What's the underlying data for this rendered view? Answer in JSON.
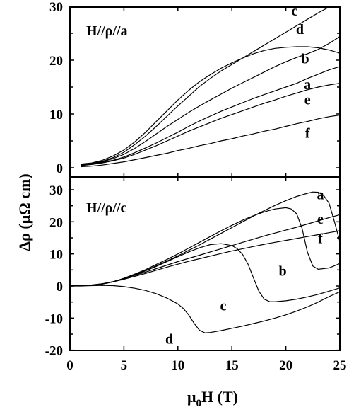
{
  "chart_data": [
    {
      "type": "line",
      "panel_label": "H//ρ//a",
      "xlim": [
        0,
        25
      ],
      "ylim": [
        -2,
        30
      ],
      "yticks": [
        "0",
        "10",
        "20",
        "30"
      ],
      "series": [
        {
          "name": "a",
          "x": [
            1,
            2,
            3,
            4,
            5,
            6,
            7,
            8,
            9,
            10,
            11,
            12,
            13,
            14,
            15,
            16,
            17,
            18,
            19,
            20,
            21,
            22,
            23,
            24,
            25
          ],
          "values": [
            0.5,
            0.7,
            1.0,
            1.4,
            2.0,
            2.8,
            3.7,
            4.6,
            5.6,
            6.6,
            7.7,
            8.7,
            9.6,
            10.5,
            11.3,
            12.1,
            12.9,
            13.6,
            14.3,
            15.0,
            15.7,
            16.6,
            17.4,
            18.2,
            18.8
          ]
        },
        {
          "name": "b",
          "x": [
            1,
            2,
            3,
            4,
            5,
            6,
            7,
            8,
            9,
            10,
            11,
            12,
            13,
            14,
            15,
            16,
            17,
            18,
            19,
            20,
            21,
            22,
            23,
            24,
            25
          ],
          "values": [
            0.5,
            0.7,
            1.1,
            1.7,
            2.5,
            3.6,
            4.9,
            6.3,
            7.7,
            9.0,
            10.3,
            11.5,
            12.6,
            13.7,
            14.8,
            15.8,
            16.8,
            17.8,
            18.8,
            19.7,
            20.5,
            21.2,
            22.0,
            23.1,
            24.4
          ]
        },
        {
          "name": "c",
          "x": [
            1,
            2,
            3,
            4,
            5,
            6,
            7,
            8,
            9,
            10,
            11,
            12,
            13,
            14,
            15,
            16,
            17,
            18,
            19,
            20,
            21,
            22,
            23,
            24,
            25
          ],
          "values": [
            0.6,
            0.8,
            1.2,
            1.9,
            2.9,
            4.3,
            5.9,
            7.7,
            9.6,
            11.5,
            13.3,
            15.1,
            16.6,
            18.0,
            19.2,
            20.4,
            21.6,
            22.8,
            24.0,
            25.2,
            26.4,
            27.6,
            28.8,
            29.9,
            30.7
          ]
        },
        {
          "name": "d",
          "x": [
            1,
            2,
            3,
            4,
            5,
            6,
            7,
            8,
            9,
            10,
            11,
            12,
            13,
            14,
            15,
            16,
            17,
            18,
            19,
            20,
            21,
            22,
            23,
            24,
            25
          ],
          "values": [
            0.7,
            0.9,
            1.4,
            2.2,
            3.3,
            4.8,
            6.6,
            8.6,
            10.6,
            12.6,
            14.4,
            16.0,
            17.3,
            18.5,
            19.5,
            20.4,
            21.2,
            21.8,
            22.2,
            22.4,
            22.5,
            22.5,
            22.3,
            21.9,
            21.3
          ]
        },
        {
          "name": "e",
          "x": [
            1,
            2,
            3,
            4,
            5,
            6,
            7,
            8,
            9,
            10,
            11,
            12,
            13,
            14,
            15,
            16,
            17,
            18,
            19,
            20,
            21,
            22,
            23,
            24,
            25
          ],
          "values": [
            0.4,
            0.6,
            0.9,
            1.3,
            1.8,
            2.5,
            3.3,
            4.1,
            5.0,
            5.9,
            6.8,
            7.6,
            8.4,
            9.2,
            9.9,
            10.6,
            11.3,
            12.0,
            12.6,
            13.3,
            13.9,
            14.5,
            15.0,
            15.4,
            15.7
          ]
        },
        {
          "name": "f",
          "x": [
            1,
            2,
            3,
            4,
            5,
            6,
            7,
            8,
            9,
            10,
            11,
            12,
            13,
            14,
            15,
            16,
            17,
            18,
            19,
            20,
            21,
            22,
            23,
            24,
            25
          ],
          "values": [
            0.2,
            0.3,
            0.5,
            0.8,
            1.1,
            1.5,
            1.9,
            2.3,
            2.7,
            3.2,
            3.6,
            4.1,
            4.5,
            5.0,
            5.4,
            5.9,
            6.3,
            6.8,
            7.2,
            7.7,
            8.2,
            8.6,
            9.1,
            9.5,
            9.8
          ]
        }
      ],
      "curve_labels": [
        {
          "text": "c",
          "x": 20.8,
          "y": 28.3
        },
        {
          "text": "d",
          "x": 21.3,
          "y": 24.9
        },
        {
          "text": "b",
          "x": 21.8,
          "y": 19.4
        },
        {
          "text": "a",
          "x": 22.0,
          "y": 14.6
        },
        {
          "text": "e",
          "x": 22.0,
          "y": 11.8
        },
        {
          "text": "f",
          "x": 22.0,
          "y": 5.6
        }
      ]
    },
    {
      "type": "line",
      "panel_label": "H//ρ//c",
      "xlim": [
        0,
        25
      ],
      "ylim": [
        -20,
        35
      ],
      "xticks": [
        "0",
        "5",
        "10",
        "15",
        "20",
        "25"
      ],
      "yticks": [
        "-20",
        "-10",
        "0",
        "10",
        "20",
        "30"
      ],
      "series": [
        {
          "name": "a",
          "x": [
            0,
            1,
            2,
            3,
            4,
            5,
            6,
            7,
            8,
            9,
            10,
            11,
            12,
            13,
            14,
            15,
            16,
            17,
            18,
            19,
            20,
            21,
            22,
            22.5,
            23,
            23.5,
            24,
            24.5,
            25
          ],
          "values": [
            0.0,
            0.1,
            0.2,
            0.6,
            1.3,
            2.3,
            3.5,
            4.8,
            6.3,
            7.8,
            9.4,
            11.1,
            12.8,
            14.6,
            16.4,
            18.2,
            20.0,
            21.8,
            23.5,
            25.1,
            26.6,
            27.9,
            28.9,
            29.3,
            29.2,
            28.2,
            25.8,
            20.0,
            13.8
          ]
        },
        {
          "name": "b",
          "x": [
            0,
            1,
            2,
            3,
            4,
            5,
            6,
            7,
            8,
            9,
            10,
            11,
            12,
            13,
            14,
            15,
            16,
            17,
            18,
            19,
            20,
            20.5,
            21,
            21.5,
            22,
            22.5,
            23,
            24,
            25
          ],
          "values": [
            0.0,
            0.1,
            0.2,
            0.6,
            1.3,
            2.4,
            3.7,
            5.1,
            6.7,
            8.3,
            10.0,
            11.8,
            13.6,
            15.4,
            17.2,
            18.9,
            20.5,
            21.9,
            23.1,
            24.0,
            24.4,
            24.0,
            22.5,
            18.0,
            10.5,
            6.2,
            5.2,
            5.6,
            7.0
          ]
        },
        {
          "name": "c",
          "x": [
            0,
            1,
            2,
            3,
            4,
            5,
            6,
            7,
            8,
            9,
            10,
            11,
            12,
            13,
            14,
            15,
            15.5,
            16,
            16.5,
            17,
            17.5,
            18,
            18.5,
            19,
            20,
            21,
            22,
            23,
            24,
            25
          ],
          "values": [
            0.0,
            0.1,
            0.2,
            0.6,
            1.3,
            2.3,
            3.4,
            4.7,
            6.1,
            7.6,
            9.1,
            10.6,
            11.9,
            12.9,
            13.2,
            12.6,
            11.6,
            9.8,
            6.8,
            2.5,
            -1.6,
            -4.1,
            -4.9,
            -4.9,
            -4.6,
            -4.1,
            -3.4,
            -2.6,
            -1.6,
            -0.6
          ]
        },
        {
          "name": "d",
          "x": [
            0,
            1,
            2,
            3,
            4,
            5,
            6,
            7,
            8,
            9,
            10,
            10.5,
            11,
            11.5,
            12,
            12.5,
            13,
            14,
            15,
            16,
            17,
            18,
            19,
            20,
            21,
            22,
            23,
            24,
            25
          ],
          "values": [
            0.0,
            0.0,
            0.1,
            0.2,
            0.1,
            -0.2,
            -0.7,
            -1.4,
            -2.4,
            -3.8,
            -5.6,
            -7.0,
            -9.0,
            -11.6,
            -13.8,
            -14.6,
            -14.5,
            -13.9,
            -13.2,
            -12.5,
            -11.7,
            -10.9,
            -10.0,
            -9.0,
            -7.8,
            -6.5,
            -5.0,
            -3.3,
            -1.8
          ]
        },
        {
          "name": "e",
          "x": [
            0,
            1,
            2,
            3,
            4,
            5,
            6,
            7,
            8,
            9,
            10,
            11,
            12,
            13,
            14,
            15,
            16,
            17,
            18,
            19,
            20,
            21,
            22,
            23,
            24,
            25
          ],
          "values": [
            0.0,
            0.1,
            0.3,
            0.7,
            1.4,
            2.3,
            3.3,
            4.3,
            5.4,
            6.5,
            7.6,
            8.6,
            9.6,
            10.6,
            11.6,
            12.6,
            13.6,
            14.6,
            15.6,
            16.5,
            17.4,
            18.3,
            19.3,
            20.3,
            21.3,
            22.2
          ]
        },
        {
          "name": "f",
          "x": [
            0,
            1,
            2,
            3,
            4,
            5,
            6,
            7,
            8,
            9,
            10,
            11,
            12,
            13,
            14,
            15,
            16,
            17,
            18,
            19,
            20,
            21,
            22,
            23,
            24,
            25
          ],
          "values": [
            0.0,
            0.1,
            0.3,
            0.7,
            1.3,
            2.1,
            3.0,
            3.9,
            4.9,
            5.9,
            6.8,
            7.7,
            8.5,
            9.3,
            10.1,
            10.9,
            11.6,
            12.3,
            13.0,
            13.6,
            14.2,
            14.8,
            15.4,
            16.0,
            16.6,
            17.2
          ]
        }
      ],
      "curve_labels": [
        {
          "text": "a",
          "x": 23.2,
          "y": 27.0
        },
        {
          "text": "e",
          "x": 23.2,
          "y": 19.4
        },
        {
          "text": "f",
          "x": 23.2,
          "y": 13.4
        },
        {
          "text": "b",
          "x": 19.7,
          "y": 3.2
        },
        {
          "text": "c",
          "x": 14.2,
          "y": -7.6
        },
        {
          "text": "d",
          "x": 9.2,
          "y": -18.0
        }
      ]
    }
  ],
  "axes": {
    "xlabel": "μ₀H (T)",
    "ylabel": "Δρ (μΩ cm)"
  }
}
